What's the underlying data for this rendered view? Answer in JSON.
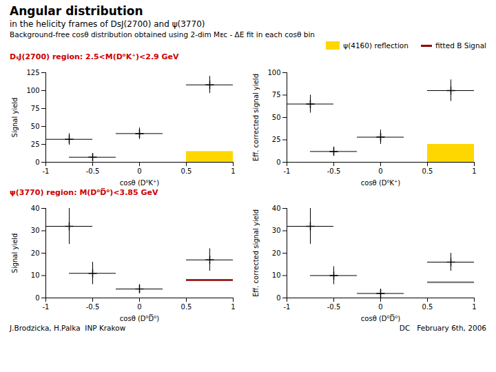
{
  "title": "Angular distribution",
  "subtitle": "in the helicity frames of DsJ(2700) and ψ(3770)",
  "legend": "upper right",
  "annotations": [
    {
      "text": [
        "Background-free cosθ distribution obtained using 2-dim Mᴇᴄ - ΔE fit in each cosθ bin"
      ]
    },
    {
      "text": [
        "DₛJ(2700) region:",
        " 2.5<M(D⁰K⁺)<2.9 GeV"
      ],
      "color": "#CC0000"
    },
    {
      "text": [
        "ψ(3770) region:",
        " M(D⁰D̅⁰)<3.85 GeV"
      ],
      "color": "#CC0000"
    },
    {
      "text": [
        "J.Brodzicka, H.Palka  INP Krakow"
      ]
    },
    {
      "text": [
        "DC   February 6th, 2006"
      ]
    }
  ],
  "chart_data": [
    {
      "type": "errorbar",
      "xlabel": "cosθ (D⁰K⁺)",
      "ylabel": "Signal yield",
      "x": [
        -0.75,
        -0.5,
        0.0,
        0.75
      ],
      "values": [
        32,
        7,
        40,
        108
      ],
      "xerr": [
        0.25,
        0.25,
        0.25,
        0.25
      ],
      "yerr": [
        8,
        4,
        8,
        12
      ],
      "color": "#000000",
      "marker": "plus",
      "xlim": [
        -1,
        1
      ],
      "xticks": [
        -1,
        -0.5,
        0,
        0.5,
        1
      ],
      "ylim": [
        0,
        125
      ],
      "yticks": [
        0,
        25,
        50,
        75,
        100,
        125
      ],
      "reflection": {
        "name": "ψ(4160) reflection",
        "x": 0.5,
        "y": 0,
        "width": 0.5,
        "height": 15,
        "color": "#FFD700"
      }
    },
    {
      "type": "errorbar",
      "xlabel": "cosθ (D⁰K⁺)",
      "ylabel": "Eff. corrected signal yield",
      "x": [
        -0.75,
        -0.5,
        0.0,
        0.75
      ],
      "values": [
        65,
        12,
        28,
        80
      ],
      "xerr": [
        0.25,
        0.25,
        0.25,
        0.25
      ],
      "yerr": [
        10,
        5,
        8,
        12
      ],
      "color": "#000000",
      "marker": "plus",
      "xlim": [
        -1,
        1
      ],
      "xticks": [
        -1,
        -0.5,
        0,
        0.5,
        1
      ],
      "ylim": [
        0,
        100
      ],
      "yticks": [
        0,
        25,
        50,
        75,
        100
      ],
      "reflection": {
        "name": "ψ(4160) reflection",
        "x": 0.5,
        "y": 0,
        "width": 0.5,
        "height": 20,
        "color": "#FFD700"
      }
    },
    {
      "type": "errorbar",
      "xlabel": "cosθ (D⁰D̅⁰)",
      "ylabel": "Signal yield",
      "x": [
        -0.75,
        -0.5,
        0.0,
        0.75
      ],
      "values": [
        32,
        11,
        4,
        17
      ],
      "xerr": [
        0.25,
        0.25,
        0.25,
        0.25
      ],
      "yerr": [
        8,
        5,
        2,
        5
      ],
      "color": "#000000",
      "marker": "plus",
      "xlim": [
        -1,
        1
      ],
      "xticks": [
        -1,
        -0.5,
        0,
        0.5,
        1
      ],
      "ylim": [
        0,
        40
      ],
      "yticks": [
        0,
        10,
        20,
        30,
        40
      ],
      "fit": {
        "name": "fitted B Signal",
        "x": 0.75,
        "xerr": 0.25,
        "value": 8,
        "color": "#8B0000"
      }
    },
    {
      "type": "errorbar",
      "xlabel": "cosθ (D⁰D̅⁰)",
      "ylabel": "Eff. corrected signal yield",
      "x": [
        -0.75,
        -0.5,
        0.0,
        0.75
      ],
      "values": [
        32,
        10,
        2,
        16
      ],
      "xerr": [
        0.25,
        0.25,
        0.25,
        0.25
      ],
      "yerr": [
        8,
        4,
        2,
        4
      ],
      "color": "#000000",
      "marker": "plus",
      "xlim": [
        -1,
        1
      ],
      "xticks": [
        -1,
        -0.5,
        0,
        0.5,
        1
      ],
      "ylim": [
        0,
        40
      ],
      "yticks": [
        0,
        10,
        20,
        30,
        40
      ],
      "fit": {
        "name": "fitted B Signal",
        "x": 0.75,
        "xerr": 0.25,
        "value": 7,
        "color": "#808080"
      }
    }
  ]
}
